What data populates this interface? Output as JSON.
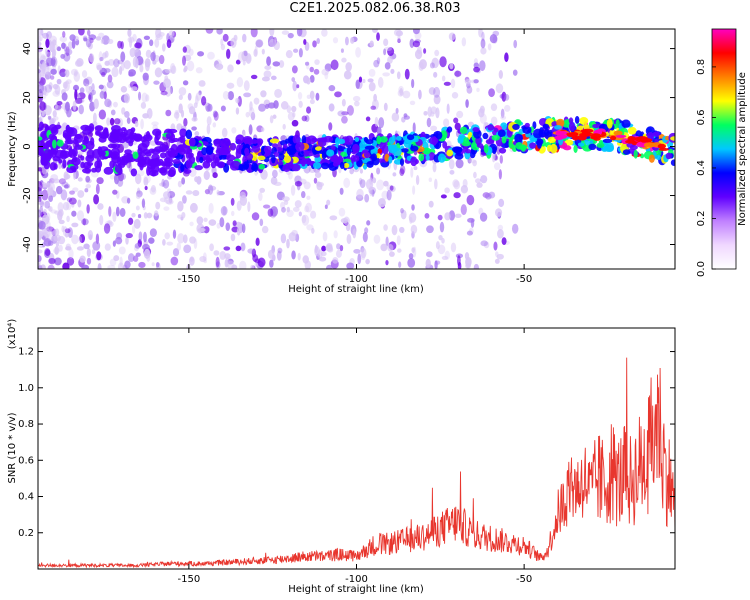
{
  "title": "C2E1.2025.082.06.38.R03",
  "colors": {
    "blob_light": "#d9c6f6",
    "blob_mid": "#a070f0",
    "blob_dark": "#6a00e8",
    "snr_line": "#e8362e",
    "colorbar": [
      "#ffffff",
      "#f0d8ff",
      "#c080ff",
      "#6000ff",
      "#0000ff",
      "#00c8ff",
      "#00ff60",
      "#ffff00",
      "#ff8000",
      "#ff0000",
      "#ff00c0"
    ]
  },
  "chart_data": [
    {
      "type": "heatmap",
      "xlabel": "Height of straight line (km)",
      "ylabel": "Frequency (Hz)",
      "xlim": [
        -195,
        -5
      ],
      "ylim": [
        -50,
        48
      ],
      "xticks": [
        -150,
        -100,
        -50
      ],
      "xtick_labels": [
        "-150",
        "-100",
        "-50"
      ],
      "yticks": [
        -40,
        -20,
        0,
        20,
        40
      ],
      "ytick_labels": [
        "-40",
        "-20",
        "0",
        "20",
        "40"
      ],
      "colorbar": {
        "label": "Normalized spectral amplitude",
        "range": [
          0,
          0.95
        ],
        "ticks": [
          "0.0",
          "0.2",
          "0.4",
          "0.6",
          "0.8"
        ]
      },
      "ridge": [
        {
          "x": -195,
          "y": 0
        },
        {
          "x": -150,
          "y": -3
        },
        {
          "x": -120,
          "y": -3
        },
        {
          "x": -100,
          "y": -2
        },
        {
          "x": -80,
          "y": 0
        },
        {
          "x": -60,
          "y": 3
        },
        {
          "x": -40,
          "y": 5
        },
        {
          "x": -25,
          "y": 5
        },
        {
          "x": -15,
          "y": 2
        },
        {
          "x": -5,
          "y": -2
        }
      ]
    },
    {
      "type": "line",
      "xlabel": "Height of straight line (km)",
      "ylabel": "SNR (10 * v/v)",
      "y_multiplier": "(x10⁴)",
      "xlim": [
        -195,
        -5
      ],
      "ylim": [
        0,
        1.33
      ],
      "xticks": [
        -150,
        -100,
        -50
      ],
      "xtick_labels": [
        "-150",
        "-100",
        "-50"
      ],
      "yticks": [
        0.2,
        0.4,
        0.6,
        0.8,
        1.0,
        1.2
      ],
      "ytick_labels": [
        "0.2",
        "0.4",
        "0.6",
        "0.8",
        "1.0",
        "1.2"
      ],
      "series": [
        {
          "x": [
            -195,
            -185,
            -175,
            -165,
            -155,
            -145,
            -135,
            -125,
            -120,
            -115,
            -110,
            -105,
            -100,
            -95,
            -90,
            -85,
            -80,
            -75,
            -70,
            -65,
            -60,
            -55,
            -50,
            -45,
            -43,
            -40,
            -38,
            -36,
            -34,
            -32,
            -30,
            -28,
            -26,
            -24,
            -22,
            -20,
            -18,
            -16,
            -14,
            -12,
            -10,
            -8,
            -6,
            -5
          ],
          "y": [
            0.02,
            0.02,
            0.02,
            0.02,
            0.03,
            0.03,
            0.04,
            0.05,
            0.06,
            0.07,
            0.07,
            0.08,
            0.07,
            0.13,
            0.14,
            0.16,
            0.18,
            0.22,
            0.26,
            0.19,
            0.17,
            0.15,
            0.13,
            0.06,
            0.1,
            0.3,
            0.38,
            0.48,
            0.45,
            0.5,
            0.42,
            0.5,
            0.46,
            0.55,
            0.48,
            0.52,
            0.48,
            0.55,
            0.6,
            0.7,
            0.85,
            0.55,
            0.45,
            0.3
          ]
        }
      ]
    }
  ]
}
